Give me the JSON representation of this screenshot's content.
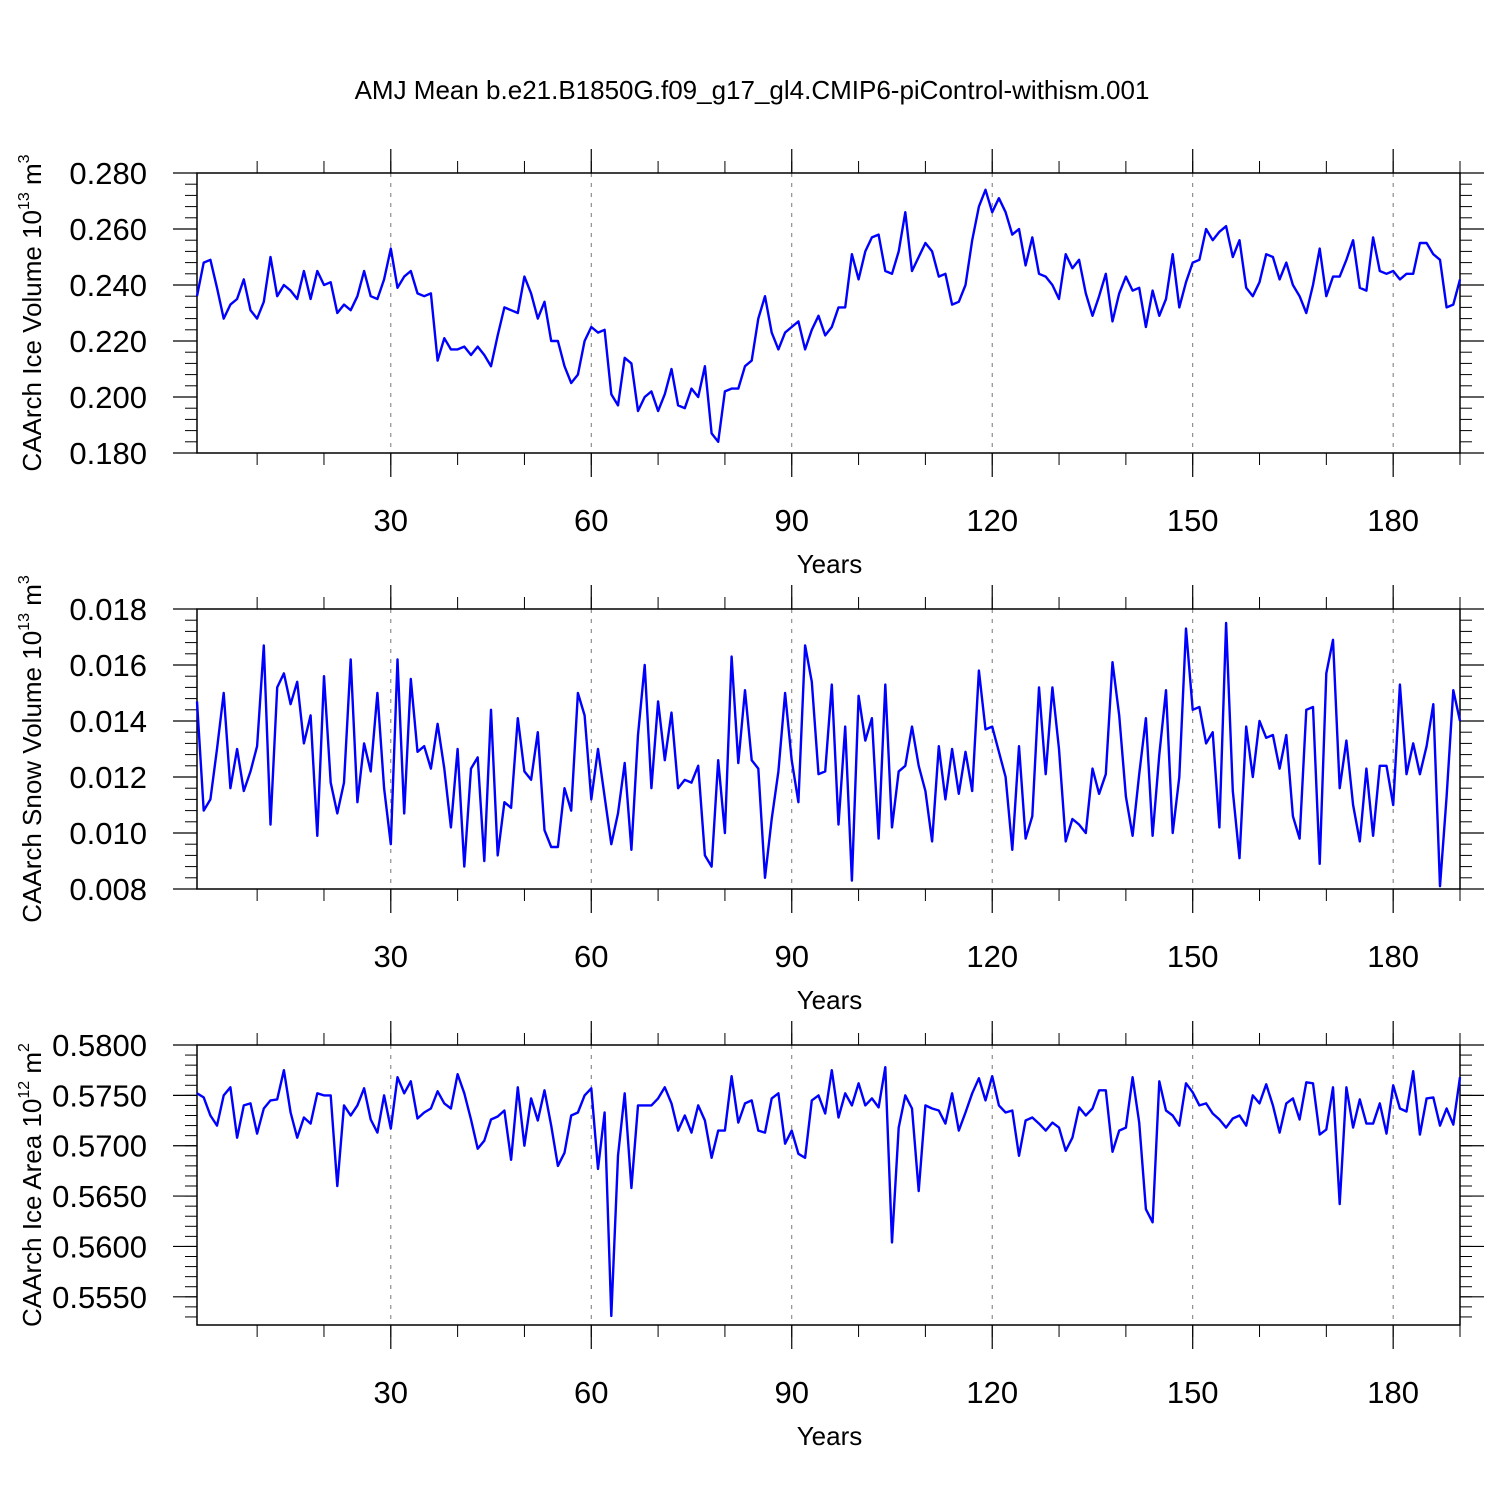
{
  "title": "AMJ Mean b.e21.B1850G.f09_g17_gl4.CMIP6-piControl-withism.001",
  "line_color": "#0000ff",
  "chart_data": [
    {
      "type": "line",
      "id": "ice-volume",
      "ylabel_main": "CAArch Ice Volume 10",
      "ylabel_exp": "13",
      "ylabel_unit": "m",
      "ylabel_unit_exp": "3",
      "xlabel": "Years",
      "xlim": [
        1,
        190
      ],
      "ylim": [
        0.18,
        0.28
      ],
      "xticks": [
        30,
        60,
        90,
        120,
        150,
        180
      ],
      "yticks": [
        "0.180",
        "0.200",
        "0.220",
        "0.240",
        "0.260",
        "0.280"
      ],
      "yticks_values": [
        0.18,
        0.2,
        0.22,
        0.24,
        0.26,
        0.28
      ],
      "y_minor_step": 0.004,
      "x_minor_step": 10,
      "series": [
        {
          "name": "Ice Volume",
          "values": [
            0.236,
            0.248,
            0.249,
            0.239,
            0.228,
            0.233,
            0.235,
            0.242,
            0.231,
            0.228,
            0.234,
            0.25,
            0.236,
            0.24,
            0.238,
            0.235,
            0.245,
            0.235,
            0.245,
            0.24,
            0.241,
            0.23,
            0.233,
            0.231,
            0.236,
            0.245,
            0.236,
            0.235,
            0.242,
            0.253,
            0.239,
            0.243,
            0.245,
            0.237,
            0.236,
            0.237,
            0.213,
            0.221,
            0.217,
            0.217,
            0.218,
            0.215,
            0.218,
            0.215,
            0.211,
            0.222,
            0.232,
            0.231,
            0.23,
            0.243,
            0.237,
            0.228,
            0.234,
            0.22,
            0.22,
            0.211,
            0.205,
            0.208,
            0.22,
            0.225,
            0.223,
            0.224,
            0.201,
            0.197,
            0.214,
            0.212,
            0.195,
            0.2,
            0.202,
            0.195,
            0.201,
            0.21,
            0.197,
            0.196,
            0.203,
            0.2,
            0.211,
            0.187,
            0.184,
            0.202,
            0.203,
            0.203,
            0.211,
            0.213,
            0.228,
            0.236,
            0.223,
            0.217,
            0.223,
            0.225,
            0.227,
            0.217,
            0.224,
            0.229,
            0.222,
            0.225,
            0.232,
            0.232,
            0.251,
            0.242,
            0.252,
            0.257,
            0.258,
            0.245,
            0.244,
            0.252,
            0.266,
            0.245,
            0.25,
            0.255,
            0.252,
            0.243,
            0.244,
            0.233,
            0.234,
            0.24,
            0.256,
            0.268,
            0.274,
            0.266,
            0.271,
            0.266,
            0.258,
            0.26,
            0.247,
            0.257,
            0.244,
            0.243,
            0.24,
            0.235,
            0.251,
            0.246,
            0.249,
            0.237,
            0.229,
            0.236,
            0.244,
            0.227,
            0.237,
            0.243,
            0.238,
            0.239,
            0.225,
            0.238,
            0.229,
            0.235,
            0.251,
            0.232,
            0.241,
            0.248,
            0.249,
            0.26,
            0.256,
            0.259,
            0.261,
            0.25,
            0.256,
            0.239,
            0.236,
            0.241,
            0.251,
            0.25,
            0.242,
            0.248,
            0.24,
            0.236,
            0.23,
            0.24,
            0.253,
            0.236,
            0.243,
            0.243,
            0.249,
            0.256,
            0.239,
            0.238,
            0.257,
            0.245,
            0.244,
            0.245,
            0.242,
            0.244,
            0.244,
            0.255,
            0.255,
            0.251,
            0.249,
            0.232,
            0.233,
            0.242
          ]
        }
      ]
    },
    {
      "type": "line",
      "id": "snow-volume",
      "ylabel_main": "CAArch Snow Volume 10",
      "ylabel_exp": "13",
      "ylabel_unit": "m",
      "ylabel_unit_exp": "3",
      "xlabel": "Years",
      "xlim": [
        1,
        190
      ],
      "ylim": [
        0.008,
        0.018
      ],
      "xticks": [
        30,
        60,
        90,
        120,
        150,
        180
      ],
      "yticks": [
        "0.008",
        "0.010",
        "0.012",
        "0.014",
        "0.016",
        "0.018"
      ],
      "yticks_values": [
        0.008,
        0.01,
        0.012,
        0.014,
        0.016,
        0.018
      ],
      "y_minor_step": 0.0004,
      "x_minor_step": 10,
      "series": [
        {
          "name": "Snow Volume",
          "values": [
            0.0147,
            0.0108,
            0.0112,
            0.013,
            0.015,
            0.0116,
            0.013,
            0.0115,
            0.0122,
            0.0131,
            0.0167,
            0.0103,
            0.0152,
            0.0157,
            0.0146,
            0.0154,
            0.0132,
            0.0142,
            0.0099,
            0.0156,
            0.0118,
            0.0107,
            0.0118,
            0.0162,
            0.0111,
            0.0132,
            0.0122,
            0.015,
            0.0116,
            0.0096,
            0.0162,
            0.0107,
            0.0155,
            0.0129,
            0.0131,
            0.0123,
            0.0139,
            0.0123,
            0.0102,
            0.013,
            0.0088,
            0.0123,
            0.0127,
            0.009,
            0.0144,
            0.0092,
            0.0111,
            0.0109,
            0.0141,
            0.0122,
            0.0119,
            0.0136,
            0.0101,
            0.0095,
            0.0095,
            0.0116,
            0.0108,
            0.015,
            0.0142,
            0.0112,
            0.013,
            0.0113,
            0.0096,
            0.0107,
            0.0125,
            0.0094,
            0.0135,
            0.016,
            0.0116,
            0.0147,
            0.0126,
            0.0143,
            0.0116,
            0.0119,
            0.0118,
            0.0124,
            0.0092,
            0.0088,
            0.0126,
            0.01,
            0.0163,
            0.0125,
            0.0151,
            0.0126,
            0.0123,
            0.0084,
            0.0105,
            0.0122,
            0.015,
            0.0126,
            0.0111,
            0.0167,
            0.0154,
            0.0121,
            0.0122,
            0.0153,
            0.0103,
            0.0138,
            0.0083,
            0.0149,
            0.0133,
            0.0141,
            0.0098,
            0.0153,
            0.0102,
            0.0122,
            0.0124,
            0.0138,
            0.0124,
            0.0115,
            0.0097,
            0.0131,
            0.0112,
            0.013,
            0.0114,
            0.0129,
            0.0115,
            0.0158,
            0.0137,
            0.0138,
            0.0129,
            0.012,
            0.0094,
            0.0131,
            0.0098,
            0.0106,
            0.0152,
            0.0121,
            0.0152,
            0.013,
            0.0097,
            0.0105,
            0.0103,
            0.01,
            0.0123,
            0.0114,
            0.0121,
            0.0161,
            0.0142,
            0.0113,
            0.0099,
            0.0121,
            0.0141,
            0.0099,
            0.0128,
            0.0151,
            0.01,
            0.012,
            0.0173,
            0.0144,
            0.0145,
            0.0132,
            0.0136,
            0.0102,
            0.0175,
            0.0115,
            0.0091,
            0.0138,
            0.012,
            0.014,
            0.0134,
            0.0135,
            0.0123,
            0.0135,
            0.0106,
            0.0098,
            0.0144,
            0.0145,
            0.0089,
            0.0157,
            0.0169,
            0.0116,
            0.0133,
            0.011,
            0.0097,
            0.0123,
            0.0099,
            0.0124,
            0.0124,
            0.011,
            0.0153,
            0.0121,
            0.0132,
            0.0121,
            0.0131,
            0.0146,
            0.0081,
            0.0113,
            0.0151,
            0.014
          ]
        }
      ]
    },
    {
      "type": "line",
      "id": "ice-area",
      "ylabel_main": "CAArch Ice Area 10",
      "ylabel_exp": "12",
      "ylabel_unit": "m",
      "ylabel_unit_exp": "2",
      "xlabel": "Years",
      "xlim": [
        1,
        190
      ],
      "ylim": [
        0.5522,
        0.58
      ],
      "xticks": [
        30,
        60,
        90,
        120,
        150,
        180
      ],
      "yticks": [
        "0.5550",
        "0.5600",
        "0.5650",
        "0.5700",
        "0.5750",
        "0.5800"
      ],
      "yticks_values": [
        0.555,
        0.56,
        0.565,
        0.57,
        0.575,
        0.58
      ],
      "y_minor_step": 0.001,
      "x_minor_step": 10,
      "series": [
        {
          "name": "Ice Area",
          "values": [
            0.5752,
            0.5748,
            0.573,
            0.572,
            0.575,
            0.5758,
            0.5708,
            0.574,
            0.5742,
            0.5712,
            0.5737,
            0.5745,
            0.5746,
            0.5775,
            0.5733,
            0.5708,
            0.5728,
            0.5722,
            0.5752,
            0.575,
            0.575,
            0.566,
            0.574,
            0.573,
            0.574,
            0.5757,
            0.5726,
            0.5713,
            0.575,
            0.5717,
            0.5768,
            0.5752,
            0.5764,
            0.5727,
            0.5733,
            0.5737,
            0.5754,
            0.5742,
            0.5737,
            0.5771,
            0.5752,
            0.5726,
            0.5697,
            0.5705,
            0.5726,
            0.5729,
            0.5735,
            0.5686,
            0.5758,
            0.57,
            0.5747,
            0.5725,
            0.5755,
            0.572,
            0.568,
            0.5693,
            0.573,
            0.5733,
            0.575,
            0.5757,
            0.5677,
            0.5733,
            0.5531,
            0.569,
            0.5752,
            0.5658,
            0.574,
            0.574,
            0.574,
            0.5747,
            0.5758,
            0.5742,
            0.5715,
            0.573,
            0.5713,
            0.574,
            0.5725,
            0.5688,
            0.5715,
            0.5715,
            0.5769,
            0.5723,
            0.5742,
            0.5745,
            0.5715,
            0.5713,
            0.5747,
            0.5752,
            0.5702,
            0.5715,
            0.5692,
            0.5688,
            0.5745,
            0.575,
            0.5732,
            0.5775,
            0.5728,
            0.5752,
            0.574,
            0.5762,
            0.574,
            0.5747,
            0.5738,
            0.5778,
            0.5604,
            0.5718,
            0.575,
            0.5737,
            0.5655,
            0.574,
            0.5737,
            0.5735,
            0.5722,
            0.5752,
            0.5715,
            0.5733,
            0.5752,
            0.5767,
            0.5745,
            0.5769,
            0.574,
            0.5733,
            0.5735,
            0.569,
            0.5725,
            0.5728,
            0.5722,
            0.5715,
            0.5723,
            0.5718,
            0.5695,
            0.5708,
            0.5738,
            0.573,
            0.5737,
            0.5755,
            0.5755,
            0.5694,
            0.5715,
            0.5718,
            0.5768,
            0.5723,
            0.5637,
            0.5624,
            0.5764,
            0.5735,
            0.573,
            0.572,
            0.5762,
            0.5753,
            0.574,
            0.5742,
            0.5732,
            0.5726,
            0.5718,
            0.5727,
            0.573,
            0.572,
            0.575,
            0.5742,
            0.5761,
            0.574,
            0.5713,
            0.5742,
            0.5747,
            0.5726,
            0.5763,
            0.5762,
            0.5711,
            0.5716,
            0.5758,
            0.5642,
            0.5758,
            0.5718,
            0.5746,
            0.5722,
            0.5722,
            0.5742,
            0.5712,
            0.576,
            0.5737,
            0.5734,
            0.5774,
            0.5711,
            0.5747,
            0.5748,
            0.572,
            0.5737,
            0.5721,
            0.5768
          ]
        }
      ]
    }
  ]
}
